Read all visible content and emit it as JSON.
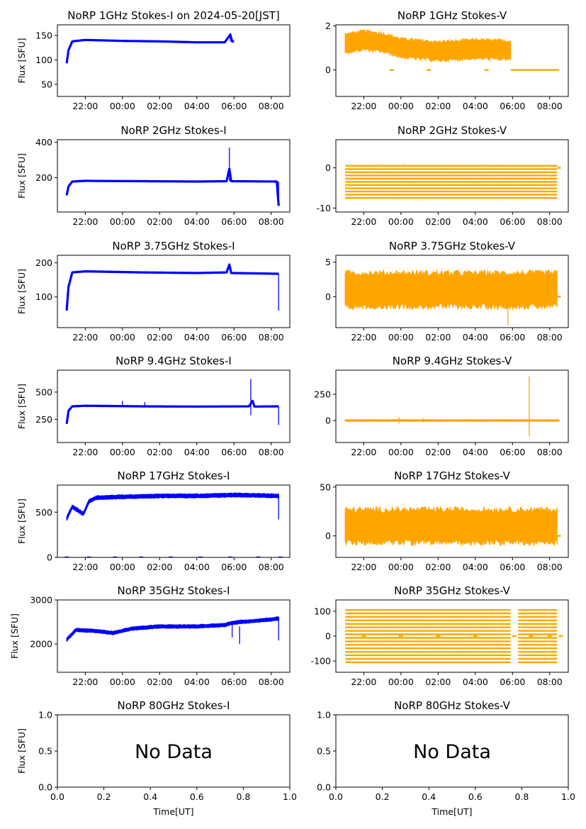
{
  "colors": {
    "stokes_i": "#0000ff",
    "stokes_v": "#ffa500"
  },
  "x_time_ticks": [
    "22:00",
    "00:00",
    "02:00",
    "04:00",
    "06:00",
    "08:00"
  ],
  "x_numeric_ticks": [
    "0.0",
    "0.2",
    "0.4",
    "0.6",
    "0.8",
    "1.0"
  ],
  "xlabel": "Time[UT]",
  "ylabel": "Flux [SFU]",
  "no_data_text": "No Data",
  "chart_data": [
    {
      "id": "1ghz-i",
      "type": "scatter",
      "title": "NoRP 1GHz Stokes-I on 2024-05-20[JST]",
      "ylabel": "Flux [SFU]",
      "stokes": "I",
      "xlim": [
        20.5,
        33.0
      ],
      "ylim": [
        25,
        172
      ],
      "yticks": [
        50,
        100,
        150
      ],
      "data_end": 30.0,
      "series": [
        {
          "name": "1GHz Stokes-I",
          "points": [
            [
              21.0,
              93
            ],
            [
              21.1,
              120
            ],
            [
              21.3,
              138
            ],
            [
              22.0,
              141
            ],
            [
              23.0,
              140
            ],
            [
              24.0,
              139
            ],
            [
              26.0,
              138
            ],
            [
              28.0,
              136
            ],
            [
              29.5,
              136
            ],
            [
              29.8,
              152
            ],
            [
              29.9,
              138
            ],
            [
              30.0,
              138
            ]
          ]
        }
      ],
      "spikes": [
        [
          29.8,
          138,
          155
        ]
      ]
    },
    {
      "id": "1ghz-v",
      "type": "scatter",
      "title": "NoRP 1GHz Stokes-V",
      "ylabel": "",
      "stokes": "V",
      "xlim": [
        20.5,
        33.0
      ],
      "ylim": [
        -1.2,
        2.05
      ],
      "yticks": [
        0,
        2
      ],
      "data_end": 29.9,
      "series": [
        {
          "name": "1GHz Stokes-V",
          "mean": [
            [
              21.0,
              1.2
            ],
            [
              22.0,
              1.35
            ],
            [
              23.0,
              1.25
            ],
            [
              24.0,
              1.0
            ],
            [
              26.0,
              0.85
            ],
            [
              28.0,
              0.95
            ],
            [
              29.9,
              0.9
            ]
          ],
          "spread": 0.45
        }
      ],
      "baseline": {
        "from": 29.9,
        "to": 32.5,
        "value": 0
      },
      "dashes": [
        [
          23.5,
          0.0
        ],
        [
          25.5,
          0.0
        ],
        [
          28.6,
          0.0
        ]
      ]
    },
    {
      "id": "2ghz-i",
      "type": "scatter",
      "title": "NoRP 2GHz Stokes-I",
      "ylabel": "Flux [SFU]",
      "stokes": "I",
      "xlim": [
        20.5,
        33.0
      ],
      "ylim": [
        5,
        415
      ],
      "yticks": [
        200,
        400
      ],
      "data_end": 32.4,
      "series": [
        {
          "name": "2GHz Stokes-I",
          "points": [
            [
              21.0,
              100
            ],
            [
              21.1,
              150
            ],
            [
              21.3,
              178
            ],
            [
              22.0,
              182
            ],
            [
              25.0,
              180
            ],
            [
              28.0,
              178
            ],
            [
              29.6,
              180
            ],
            [
              29.75,
              250
            ],
            [
              29.85,
              180
            ],
            [
              32.3,
              178
            ],
            [
              32.4,
              40
            ]
          ]
        }
      ],
      "spikes": [
        [
          29.75,
          180,
          370
        ],
        [
          32.4,
          60,
          178
        ]
      ]
    },
    {
      "id": "2ghz-v",
      "type": "scatter",
      "title": "NoRP 2GHz Stokes-V",
      "ylabel": "",
      "stokes": "V",
      "xlim": [
        20.5,
        33.0
      ],
      "ylim": [
        -11,
        7
      ],
      "yticks": [
        -10,
        0
      ],
      "data_end": 32.4,
      "series": [
        {
          "name": "2GHz Stokes-V",
          "levels": [
            0.5,
            -0.3,
            -1.1,
            -1.9,
            -2.7,
            -3.5,
            -4.3,
            -5.1,
            -5.9,
            -6.7,
            -7.5
          ]
        }
      ],
      "baseline": {
        "from": 32.4,
        "to": 32.6,
        "value": 0
      }
    },
    {
      "id": "3ghz-i",
      "type": "scatter",
      "title": "NoRP 3.75GHz Stokes-I",
      "ylabel": "Flux [SFU]",
      "stokes": "I",
      "xlim": [
        20.5,
        33.0
      ],
      "ylim": [
        10,
        222
      ],
      "yticks": [
        100,
        200
      ],
      "data_end": 32.4,
      "series": [
        {
          "name": "3.75GHz Stokes-I",
          "points": [
            [
              21.0,
              60
            ],
            [
              21.1,
              130
            ],
            [
              21.3,
              172
            ],
            [
              22.0,
              175
            ],
            [
              25.0,
              172
            ],
            [
              28.0,
              170
            ],
            [
              29.6,
              172
            ],
            [
              29.75,
              195
            ],
            [
              29.85,
              170
            ],
            [
              32.3,
              168
            ],
            [
              32.4,
              168
            ]
          ]
        }
      ],
      "spikes": [
        [
          32.4,
          60,
          168
        ]
      ]
    },
    {
      "id": "3ghz-v",
      "type": "scatter",
      "title": "NoRP 3.75GHz Stokes-V",
      "ylabel": "",
      "stokes": "V",
      "xlim": [
        20.5,
        33.0
      ],
      "ylim": [
        -4.5,
        6
      ],
      "yticks": [
        0,
        5
      ],
      "data_end": 32.4,
      "series": [
        {
          "name": "3.75GHz Stokes-V",
          "mean": [
            [
              21.0,
              1.0
            ],
            [
              32.4,
              1.0
            ]
          ],
          "spread": 2.6
        }
      ],
      "baseline": {
        "from": 32.4,
        "to": 32.6,
        "value": 0
      },
      "spikes": [
        [
          29.75,
          -4.2,
          1.0
        ]
      ]
    },
    {
      "id": "9ghz-i",
      "type": "scatter",
      "title": "NoRP 9.4GHz Stokes-I",
      "ylabel": "Flux [SFU]",
      "stokes": "I",
      "xlim": [
        20.5,
        33.0
      ],
      "ylim": [
        40,
        700
      ],
      "yticks": [
        250,
        500
      ],
      "data_end": 32.4,
      "series": [
        {
          "name": "9.4GHz Stokes-I",
          "points": [
            [
              21.0,
              210
            ],
            [
              21.1,
              330
            ],
            [
              21.3,
              370
            ],
            [
              22.0,
              375
            ],
            [
              25.0,
              370
            ],
            [
              28.0,
              368
            ],
            [
              30.8,
              370
            ],
            [
              31.0,
              420
            ],
            [
              31.1,
              368
            ],
            [
              32.3,
              370
            ],
            [
              32.4,
              370
            ]
          ]
        }
      ],
      "spikes": [
        [
          30.9,
          290,
          620
        ],
        [
          32.4,
          200,
          370
        ],
        [
          24.0,
          370,
          420
        ],
        [
          25.2,
          370,
          410
        ]
      ]
    },
    {
      "id": "9ghz-v",
      "type": "scatter",
      "title": "NoRP 9.4GHz Stokes-V",
      "ylabel": "",
      "stokes": "V",
      "xlim": [
        20.5,
        33.0
      ],
      "ylim": [
        -210,
        480
      ],
      "yticks": [
        0,
        250
      ],
      "data_end": 32.5,
      "series": [
        {
          "name": "9.4GHz Stokes-V",
          "mean": [
            [
              21.0,
              0
            ],
            [
              32.5,
              0
            ]
          ],
          "spread": 8
        }
      ],
      "spikes": [
        [
          30.9,
          -150,
          420
        ],
        [
          23.9,
          -30,
          30
        ],
        [
          25.2,
          -20,
          20
        ]
      ]
    },
    {
      "id": "17ghz-i",
      "type": "scatter",
      "title": "NoRP 17GHz Stokes-I",
      "ylabel": "Flux [SFU]",
      "stokes": "I",
      "xlim": [
        20.5,
        33.0
      ],
      "ylim": [
        0,
        800
      ],
      "yticks": [
        0,
        500
      ],
      "data_end": 32.4,
      "series": [
        {
          "name": "17GHz Stokes-I",
          "mean": [
            [
              21.0,
              430
            ],
            [
              21.3,
              560
            ],
            [
              21.6,
              520
            ],
            [
              21.9,
              480
            ],
            [
              22.2,
              620
            ],
            [
              22.6,
              660
            ],
            [
              24.0,
              670
            ],
            [
              26.0,
              680
            ],
            [
              28.0,
              680
            ],
            [
              30.0,
              690
            ],
            [
              32.4,
              680
            ]
          ],
          "spread": 22
        }
      ],
      "baseline_dashes": [
        [
          21.0,
          0
        ],
        [
          22.2,
          0
        ],
        [
          23.6,
          0
        ],
        [
          25.0,
          0
        ],
        [
          26.6,
          0
        ],
        [
          28.2,
          0
        ],
        [
          29.8,
          0
        ],
        [
          31.3,
          0
        ],
        [
          32.5,
          0
        ]
      ],
      "spikes": [
        [
          32.4,
          420,
          680
        ]
      ]
    },
    {
      "id": "17ghz-v",
      "type": "scatter",
      "title": "NoRP 17GHz Stokes-V",
      "ylabel": "",
      "stokes": "V",
      "xlim": [
        20.5,
        33.0
      ],
      "ylim": [
        -22,
        52
      ],
      "yticks": [
        0,
        50
      ],
      "data_end": 32.4,
      "series": [
        {
          "name": "17GHz Stokes-V",
          "mean": [
            [
              21.0,
              10
            ],
            [
              32.4,
              10
            ]
          ],
          "spread": 18
        }
      ],
      "baseline": {
        "from": 32.4,
        "to": 32.6,
        "value": 0
      }
    },
    {
      "id": "35ghz-i",
      "type": "scatter",
      "title": "NoRP 35GHz Stokes-I",
      "ylabel": "Flux [SFU]",
      "stokes": "I",
      "xlim": [
        20.5,
        33.0
      ],
      "ylim": [
        1360,
        3000
      ],
      "yticks": [
        2000,
        3000
      ],
      "data_end": 32.4,
      "series": [
        {
          "name": "35GHz Stokes-I",
          "mean": [
            [
              21.0,
              2100
            ],
            [
              21.5,
              2320
            ],
            [
              22.5,
              2300
            ],
            [
              23.5,
              2250
            ],
            [
              24.5,
              2350
            ],
            [
              26.0,
              2400
            ],
            [
              28.0,
              2400
            ],
            [
              29.5,
              2430
            ],
            [
              29.9,
              2480
            ],
            [
              30.3,
              2500
            ],
            [
              31.0,
              2520
            ],
            [
              32.0,
              2560
            ],
            [
              32.4,
              2580
            ]
          ],
          "spread": 40
        }
      ],
      "spikes": [
        [
          29.9,
          2150,
          2450
        ],
        [
          30.3,
          2000,
          2400
        ],
        [
          32.4,
          2080,
          2600
        ]
      ]
    },
    {
      "id": "35ghz-v",
      "type": "scatter",
      "title": "NoRP 35GHz Stokes-V",
      "ylabel": "",
      "stokes": "V",
      "xlim": [
        20.5,
        33.0
      ],
      "ylim": [
        -145,
        145
      ],
      "yticks": [
        -100,
        0,
        100
      ],
      "data_end": 32.4,
      "series": [
        {
          "name": "35GHz Stokes-V",
          "levels": [
            105,
            91,
            77,
            63,
            49,
            35,
            21,
            7,
            -7,
            -21,
            -35,
            -49,
            -63,
            -77,
            -91,
            -105
          ],
          "gap": [
            29.9,
            30.3
          ]
        }
      ],
      "dashes": [
        [
          22.0,
          0
        ],
        [
          24.0,
          0
        ],
        [
          26.0,
          0
        ],
        [
          28.0,
          0
        ],
        [
          30.1,
          0
        ],
        [
          31.0,
          0
        ],
        [
          32.0,
          0
        ],
        [
          32.6,
          0
        ]
      ]
    },
    {
      "id": "80ghz-i",
      "type": "empty",
      "title": "NoRP 80GHz Stokes-I",
      "ylabel": "Flux [SFU]",
      "xlabel": "Time[UT]",
      "xlim": [
        0,
        1
      ],
      "ylim": [
        0,
        1
      ],
      "yticks": [
        "0.0",
        "0.5",
        "1.0"
      ],
      "xticks": [
        "0.0",
        "0.2",
        "0.4",
        "0.6",
        "0.8",
        "1.0"
      ],
      "annotation": "No Data"
    },
    {
      "id": "80ghz-v",
      "type": "empty",
      "title": "NoRP 80GHz Stokes-V",
      "ylabel": "",
      "xlabel": "Time[UT]",
      "xlim": [
        0,
        1
      ],
      "ylim": [
        0,
        1
      ],
      "yticks": [
        "0.0",
        "0.5",
        "1.0"
      ],
      "xticks": [
        "0.0",
        "0.2",
        "0.4",
        "0.6",
        "0.8",
        "1.0"
      ],
      "annotation": "No Data"
    }
  ]
}
